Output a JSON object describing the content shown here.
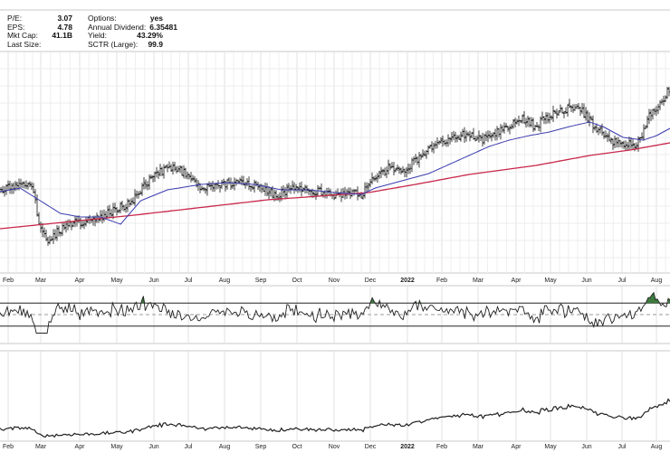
{
  "header": {
    "stats_left": [
      {
        "label": "P/E:",
        "value": "3.07"
      },
      {
        "label": "EPS:",
        "value": "4.78"
      },
      {
        "label": "Mkt Cap:",
        "value": "41.1B"
      },
      {
        "label": "Last Size:",
        "value": ""
      }
    ],
    "stats_right": [
      {
        "label": "Options:",
        "value": "yes"
      },
      {
        "label": "Annual Dividend:",
        "value": "6.35481"
      },
      {
        "label": "Yield:",
        "value": "43.29%"
      },
      {
        "label": "SCTR (Large):",
        "value": "99.9"
      }
    ]
  },
  "chart_data": {
    "type": "line",
    "x_tick_labels": [
      "Feb",
      "Mar",
      "Apr",
      "May",
      "Jun",
      "Jul",
      "Aug",
      "Sep",
      "Oct",
      "Nov",
      "Dec",
      "2022",
      "Feb",
      "Mar",
      "Apr",
      "May",
      "Jun",
      "Jul",
      "Aug"
    ],
    "bold_tick_labels": [
      "2022"
    ],
    "grid": true,
    "colors": {
      "price": "#111111",
      "ma_short": "#3b3bb0",
      "ma_long": "#c8284a",
      "overbought_fill": "#3e7a3e",
      "panel_line": "#222222",
      "grid": "#e0e0e0",
      "refline": "#9a9a9a"
    },
    "price_panel": {
      "price_anchors": [
        [
          0,
          208
        ],
        [
          0.03,
          205
        ],
        [
          0.05,
          210
        ],
        [
          0.055,
          245
        ],
        [
          0.07,
          265
        ],
        [
          0.1,
          248
        ],
        [
          0.13,
          244
        ],
        [
          0.16,
          236
        ],
        [
          0.19,
          226
        ],
        [
          0.21,
          210
        ],
        [
          0.23,
          192
        ],
        [
          0.26,
          186
        ],
        [
          0.28,
          192
        ],
        [
          0.3,
          207
        ],
        [
          0.33,
          205
        ],
        [
          0.36,
          200
        ],
        [
          0.39,
          207
        ],
        [
          0.41,
          216
        ],
        [
          0.44,
          208
        ],
        [
          0.47,
          212
        ],
        [
          0.5,
          216
        ],
        [
          0.52,
          215
        ],
        [
          0.54,
          216
        ],
        [
          0.56,
          196
        ],
        [
          0.58,
          186
        ],
        [
          0.6,
          190
        ],
        [
          0.62,
          178
        ],
        [
          0.64,
          162
        ],
        [
          0.66,
          156
        ],
        [
          0.68,
          152
        ],
        [
          0.7,
          148
        ],
        [
          0.72,
          155
        ],
        [
          0.74,
          148
        ],
        [
          0.76,
          138
        ],
        [
          0.78,
          132
        ],
        [
          0.8,
          140
        ],
        [
          0.82,
          128
        ],
        [
          0.84,
          124
        ],
        [
          0.855,
          118
        ],
        [
          0.87,
          124
        ],
        [
          0.89,
          140
        ],
        [
          0.91,
          156
        ],
        [
          0.93,
          160
        ],
        [
          0.95,
          160
        ],
        [
          0.96,
          148
        ],
        [
          0.97,
          128
        ],
        [
          0.985,
          115
        ],
        [
          1.0,
          100
        ]
      ],
      "ma_short_anchors": [
        [
          0,
          212
        ],
        [
          0.03,
          208
        ],
        [
          0.06,
          222
        ],
        [
          0.09,
          236
        ],
        [
          0.12,
          240
        ],
        [
          0.15,
          240
        ],
        [
          0.18,
          248
        ],
        [
          0.21,
          222
        ],
        [
          0.25,
          210
        ],
        [
          0.3,
          204
        ],
        [
          0.34,
          202
        ],
        [
          0.38,
          204
        ],
        [
          0.42,
          210
        ],
        [
          0.46,
          210
        ],
        [
          0.5,
          213
        ],
        [
          0.54,
          215
        ],
        [
          0.56,
          208
        ],
        [
          0.6,
          200
        ],
        [
          0.64,
          192
        ],
        [
          0.67,
          182
        ],
        [
          0.7,
          172
        ],
        [
          0.73,
          162
        ],
        [
          0.76,
          155
        ],
        [
          0.79,
          150
        ],
        [
          0.82,
          146
        ],
        [
          0.85,
          140
        ],
        [
          0.88,
          135
        ],
        [
          0.9,
          140
        ],
        [
          0.93,
          152
        ],
        [
          0.96,
          155
        ],
        [
          0.98,
          150
        ],
        [
          1.0,
          142
        ]
      ],
      "ma_long_anchors": [
        [
          0,
          253
        ],
        [
          0.2,
          238
        ],
        [
          0.4,
          221
        ],
        [
          0.55,
          213
        ],
        [
          0.62,
          204
        ],
        [
          0.7,
          193
        ],
        [
          0.8,
          183
        ],
        [
          0.88,
          172
        ],
        [
          0.94,
          166
        ],
        [
          1.0,
          158
        ]
      ]
    },
    "rsi_panel": {
      "upper_ref": 70,
      "lower_ref": 30,
      "mid_ref": 50
    }
  }
}
